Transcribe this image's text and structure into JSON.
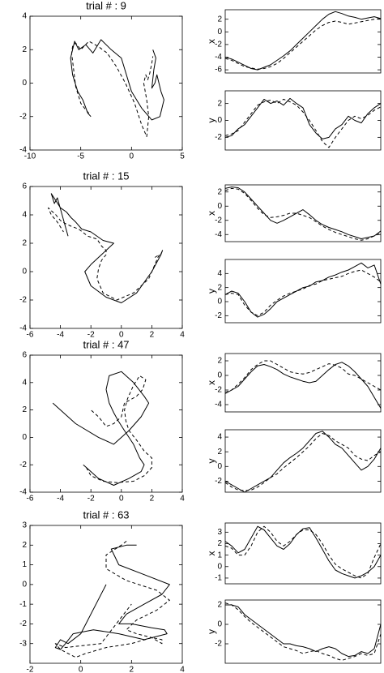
{
  "chart_data": [
    {
      "type": "line",
      "title": "trial # : 9",
      "xlim": [
        -10,
        5
      ],
      "ylim": [
        -4,
        4
      ],
      "xticks": [
        -10,
        -5,
        0,
        5
      ],
      "yticks": [
        -4,
        -2,
        0,
        2,
        4
      ],
      "series": [
        {
          "color": "#000000",
          "dashed": false,
          "x": [
            -4,
            -4.3,
            -4.8,
            -5.3,
            -5.8,
            -6,
            -5.6,
            -5.2,
            -4.5,
            -3.8,
            -3,
            -2,
            -1,
            0,
            1,
            2,
            2.8,
            3.2,
            2.9,
            2.5,
            2.3,
            2.0,
            2.2,
            2.4,
            2.1
          ],
          "values": [
            -2,
            -1.8,
            -1,
            -0.5,
            0.5,
            1.5,
            2.5,
            2,
            2.3,
            1.8,
            2.6,
            2,
            1.5,
            -0.5,
            -1.5,
            -2.2,
            -2,
            -1,
            -0.5,
            0.5,
            0,
            -0.3,
            0.8,
            1.5,
            2
          ]
        },
        {
          "color": "#000000",
          "dashed": true,
          "x": [
            -4.2,
            -4.5,
            -5,
            -5.5,
            -5.7,
            -5.9,
            -5.8,
            -5.5,
            -5,
            -4.2,
            -3.3,
            -2.4,
            -1.5,
            -0.6,
            0.3,
            1,
            1.5,
            1.7,
            1.5,
            1.2,
            1.4,
            1.6,
            1.8,
            2,
            2.1
          ],
          "values": [
            -1.8,
            -1.6,
            -1.2,
            -0.2,
            0.8,
            1.8,
            2.2,
            2.4,
            2,
            2.5,
            2.2,
            1.8,
            1,
            0,
            -1.2,
            -2.5,
            -3.2,
            -2,
            -1,
            0,
            0.5,
            0.2,
            0.6,
            1.2,
            1.6
          ]
        }
      ]
    },
    {
      "type": "line",
      "ylabel": "x",
      "ylim": [
        -6.5,
        3.5
      ],
      "yticks": [
        -6,
        -4,
        -2,
        0,
        2
      ],
      "series": [
        {
          "color": "#000000",
          "dashed": false,
          "values": [
            -4,
            -4.3,
            -4.8,
            -5.3,
            -5.8,
            -6,
            -5.6,
            -5.2,
            -4.5,
            -3.8,
            -3,
            -2,
            -1,
            0,
            1,
            2,
            2.8,
            3.2,
            2.9,
            2.5,
            2.3,
            2.0,
            2.2,
            2.4,
            2.1
          ]
        },
        {
          "color": "#000000",
          "dashed": true,
          "values": [
            -4.2,
            -4.5,
            -5,
            -5.5,
            -5.7,
            -5.9,
            -5.8,
            -5.5,
            -5,
            -4.2,
            -3.3,
            -2.4,
            -1.5,
            -0.6,
            0.3,
            1,
            1.5,
            1.7,
            1.5,
            1.2,
            1.4,
            1.6,
            1.8,
            2,
            2.1
          ]
        }
      ]
    },
    {
      "type": "line",
      "ylabel": "y",
      "ylim": [
        -3.5,
        3.5
      ],
      "yticks": [
        -2,
        0,
        2
      ],
      "series": [
        {
          "color": "#000000",
          "dashed": false,
          "values": [
            -2,
            -1.8,
            -1,
            -0.5,
            0.5,
            1.5,
            2.5,
            2,
            2.3,
            1.8,
            2.6,
            2,
            1.5,
            -0.5,
            -1.5,
            -2.2,
            -2,
            -1,
            -0.5,
            0.5,
            0,
            -0.3,
            0.8,
            1.5,
            2
          ]
        },
        {
          "color": "#000000",
          "dashed": true,
          "values": [
            -1.8,
            -1.6,
            -1.2,
            -0.2,
            0.8,
            1.8,
            2.2,
            2.4,
            2,
            2.5,
            2.2,
            1.8,
            1,
            0,
            -1.2,
            -2.5,
            -3.2,
            -2,
            -1,
            0,
            0.5,
            0.2,
            0.6,
            1.2,
            1.6
          ]
        }
      ]
    },
    {
      "type": "line",
      "title": "trial # : 15",
      "xlim": [
        -6,
        4
      ],
      "ylim": [
        -4,
        6
      ],
      "xticks": [
        -6,
        -4,
        -2,
        0,
        2,
        4
      ],
      "yticks": [
        -4,
        -2,
        0,
        2,
        4,
        6
      ],
      "series": [
        {
          "color": "#000000",
          "dashed": false,
          "x": [
            2.5,
            2.7,
            2.6,
            2,
            1,
            0,
            -1,
            -2,
            -2.4,
            -2,
            -1.5,
            -1,
            -0.5,
            -1.2,
            -2,
            -2.6,
            -3,
            -3.3,
            -3.6,
            -4,
            -4.3,
            -4.6,
            -4.4,
            -4.2,
            -3.5
          ],
          "values": [
            1,
            1.5,
            1.2,
            0,
            -1.5,
            -2.2,
            -1.8,
            -1,
            0,
            0.5,
            1,
            1.5,
            2,
            2.2,
            2.8,
            3,
            3.5,
            3.8,
            4.2,
            4.5,
            5,
            5.5,
            4.8,
            5.2,
            2.5
          ]
        },
        {
          "color": "#000000",
          "dashed": true,
          "x": [
            2.2,
            2.5,
            2.4,
            1.8,
            0.8,
            -0.3,
            -1.2,
            -1.6,
            -1.5,
            -1.3,
            -1,
            -1,
            -1.3,
            -1.6,
            -2.2,
            -2.8,
            -3.3,
            -3.7,
            -4,
            -4.3,
            -4.6,
            -4.8,
            -4.6,
            -4.2,
            -3.8
          ],
          "values": [
            1,
            1.2,
            1,
            -0.5,
            -1.5,
            -2,
            -1.5,
            -0.5,
            0.2,
            0.8,
            1.2,
            1.5,
            1.8,
            2.3,
            2.5,
            3,
            3.2,
            3.4,
            3.6,
            4,
            4.3,
            4.5,
            4,
            3.5,
            2.8
          ]
        }
      ]
    },
    {
      "type": "line",
      "ylabel": "x",
      "ylim": [
        -5,
        3
      ],
      "yticks": [
        -4,
        -2,
        0,
        2
      ],
      "series": [
        {
          "color": "#000000",
          "dashed": false,
          "values": [
            2.5,
            2.7,
            2.6,
            2,
            1,
            0,
            -1,
            -2,
            -2.4,
            -2,
            -1.5,
            -1,
            -0.5,
            -1.2,
            -2,
            -2.6,
            -3,
            -3.3,
            -3.6,
            -4,
            -4.3,
            -4.6,
            -4.4,
            -4.2,
            -3.5
          ]
        },
        {
          "color": "#000000",
          "dashed": true,
          "values": [
            2.2,
            2.5,
            2.4,
            1.8,
            0.8,
            -0.3,
            -1.2,
            -1.6,
            -1.5,
            -1.3,
            -1,
            -1,
            -1.3,
            -1.6,
            -2.2,
            -2.8,
            -3.3,
            -3.7,
            -4,
            -4.3,
            -4.6,
            -4.8,
            -4.6,
            -4.2,
            -3.8
          ]
        }
      ]
    },
    {
      "type": "line",
      "ylabel": "y",
      "ylim": [
        -3,
        6
      ],
      "yticks": [
        -2,
        0,
        2,
        4
      ],
      "series": [
        {
          "color": "#000000",
          "dashed": false,
          "values": [
            1,
            1.5,
            1.2,
            0,
            -1.5,
            -2.2,
            -1.8,
            -1,
            0,
            0.5,
            1,
            1.5,
            2,
            2.2,
            2.8,
            3,
            3.5,
            3.8,
            4.2,
            4.5,
            5,
            5.5,
            4.8,
            5.2,
            2.5
          ]
        },
        {
          "color": "#000000",
          "dashed": true,
          "values": [
            1,
            1.2,
            1,
            -0.5,
            -1.5,
            -2,
            -1.5,
            -0.5,
            0.2,
            0.8,
            1.2,
            1.5,
            1.8,
            2.3,
            2.5,
            3,
            3.2,
            3.4,
            3.6,
            4,
            4.3,
            4.5,
            4,
            3.5,
            2.8
          ]
        }
      ]
    },
    {
      "type": "line",
      "title": "trial # : 47",
      "xlim": [
        -6,
        4
      ],
      "ylim": [
        -4,
        6
      ],
      "xticks": [
        -6,
        -4,
        -2,
        0,
        2,
        4
      ],
      "yticks": [
        -4,
        -2,
        0,
        2,
        4,
        6
      ],
      "series": [
        {
          "color": "#000000",
          "dashed": false,
          "x": [
            -2.5,
            -2,
            -1.5,
            -0.5,
            0.5,
            1.3,
            1.5,
            1.2,
            0.8,
            0.2,
            -0.2,
            -0.5,
            -0.8,
            -1,
            -0.8,
            0,
            0.8,
            1.5,
            1.8,
            1.3,
            0.5,
            -0.5,
            -1.5,
            -3,
            -4.5
          ],
          "values": [
            -2,
            -2.5,
            -3,
            -3.5,
            -3,
            -2.5,
            -2,
            -1.5,
            -0.5,
            0.5,
            1.2,
            1.8,
            2.5,
            3.5,
            4.5,
            4.8,
            4,
            3,
            2.5,
            1.5,
            0.5,
            -0.5,
            0,
            1,
            2.5
          ]
        },
        {
          "color": "#000000",
          "dashed": true,
          "x": [
            -2.3,
            -2,
            -1.2,
            -0.3,
            0.8,
            1.5,
            2,
            2,
            1.5,
            1,
            0.5,
            0.3,
            0.2,
            0.4,
            0.8,
            1.2,
            1.6,
            1.4,
            1,
            0.2,
            0,
            -0.5,
            -1,
            -1.5,
            -2
          ],
          "values": [
            -2.2,
            -2.8,
            -3.2,
            -3.3,
            -3.2,
            -2.8,
            -2.2,
            -1.5,
            -1,
            -0.2,
            0.5,
            1.2,
            2,
            2.8,
            3.8,
            4.5,
            4.2,
            3.5,
            3,
            2.5,
            1.5,
            1,
            0.8,
            1.5,
            2
          ]
        }
      ]
    },
    {
      "type": "line",
      "ylabel": "x",
      "ylim": [
        -5,
        3
      ],
      "yticks": [
        -4,
        -2,
        0,
        2
      ],
      "series": [
        {
          "color": "#000000",
          "dashed": false,
          "values": [
            -2.5,
            -2,
            -1.5,
            -0.5,
            0.5,
            1.3,
            1.5,
            1.2,
            0.8,
            0.2,
            -0.2,
            -0.5,
            -0.8,
            -1,
            -0.8,
            0,
            0.8,
            1.5,
            1.8,
            1.3,
            0.5,
            -0.5,
            -1.5,
            -3,
            -4.5
          ]
        },
        {
          "color": "#000000",
          "dashed": true,
          "values": [
            -2.3,
            -2,
            -1.2,
            -0.3,
            0.8,
            1.5,
            2,
            2,
            1.5,
            1,
            0.5,
            0.3,
            0.2,
            0.4,
            0.8,
            1.2,
            1.6,
            1.4,
            1,
            0.2,
            0,
            -0.5,
            -1,
            -1.5,
            -2
          ]
        }
      ]
    },
    {
      "type": "line",
      "ylabel": "y",
      "ylim": [
        -3.5,
        5
      ],
      "yticks": [
        -2,
        0,
        2,
        4
      ],
      "series": [
        {
          "color": "#000000",
          "dashed": false,
          "values": [
            -2,
            -2.5,
            -3,
            -3.5,
            -3,
            -2.5,
            -2,
            -1.5,
            -0.5,
            0.5,
            1.2,
            1.8,
            2.5,
            3.5,
            4.5,
            4.8,
            4,
            3,
            2.5,
            1.5,
            0.5,
            -0.5,
            0,
            1,
            2.5
          ]
        },
        {
          "color": "#000000",
          "dashed": true,
          "values": [
            -2.2,
            -2.8,
            -3.2,
            -3.3,
            -3.2,
            -2.8,
            -2.2,
            -1.5,
            -1,
            -0.2,
            0.5,
            1.2,
            2,
            2.8,
            3.8,
            4.5,
            4.2,
            3.5,
            3,
            2.5,
            1.5,
            1,
            0.8,
            1.5,
            2
          ]
        }
      ]
    },
    {
      "type": "line",
      "title": "trial # : 63",
      "xlim": [
        -2,
        4
      ],
      "ylim": [
        -4,
        3
      ],
      "xticks": [
        -2,
        0,
        2,
        4
      ],
      "yticks": [
        -3,
        -2,
        -1,
        0,
        1,
        2,
        3
      ],
      "series": [
        {
          "color": "#000000",
          "dashed": false,
          "x": [
            2.2,
            1.8,
            1.2,
            1.5,
            2.5,
            3.5,
            3.2,
            2.5,
            1.8,
            1.5,
            2,
            2.8,
            3.3,
            3.4,
            2.5,
            1.5,
            0.5,
            -0.3,
            -0.6,
            -0.8,
            -1,
            -0.8,
            -0.5,
            0,
            1
          ],
          "values": [
            2,
            2,
            1.8,
            1,
            0.5,
            0,
            -0.5,
            -1,
            -1.5,
            -2,
            -2,
            -2.2,
            -2.3,
            -2.5,
            -2.8,
            -2.5,
            -2.3,
            -2.5,
            -3,
            -3.3,
            -3.2,
            -2.8,
            -3,
            -2.5,
            0
          ]
        },
        {
          "color": "#000000",
          "dashed": true,
          "x": [
            1.8,
            1.6,
            1,
            1,
            1.8,
            3,
            3.5,
            3,
            2.2,
            1.8,
            2.2,
            2.8,
            3.2,
            3.2,
            2.8,
            2,
            1,
            0.2,
            -0.2,
            -0.5,
            -0.8,
            -1,
            -0.6,
            0.8,
            2
          ],
          "values": [
            2.2,
            2,
            1.5,
            0.8,
            0.2,
            -0.3,
            -0.8,
            -1.3,
            -1.8,
            -2.3,
            -2.5,
            -2.7,
            -3,
            -2.8,
            -2.7,
            -3,
            -3.2,
            -3.5,
            -3.7,
            -3.5,
            -3.3,
            -3,
            -3.2,
            -3,
            -1
          ]
        }
      ]
    },
    {
      "type": "line",
      "ylabel": "x",
      "ylim": [
        -1.5,
        3.8
      ],
      "yticks": [
        -1,
        0,
        1,
        2,
        3
      ],
      "series": [
        {
          "color": "#000000",
          "dashed": false,
          "values": [
            2.2,
            1.8,
            1.2,
            1.5,
            2.5,
            3.5,
            3.2,
            2.5,
            1.8,
            1.5,
            2,
            2.8,
            3.3,
            3.4,
            2.5,
            1.5,
            0.5,
            -0.3,
            -0.6,
            -0.8,
            -1,
            -0.8,
            -0.5,
            0,
            1
          ]
        },
        {
          "color": "#000000",
          "dashed": true,
          "values": [
            1.8,
            1.6,
            1,
            1,
            1.8,
            3,
            3.5,
            3,
            2.2,
            1.8,
            2.2,
            2.8,
            3.2,
            3.2,
            2.8,
            2,
            1,
            0.2,
            -0.2,
            -0.5,
            -0.8,
            -1,
            -0.6,
            0.8,
            2
          ]
        }
      ]
    },
    {
      "type": "line",
      "ylabel": "y",
      "ylim": [
        -4,
        2.5
      ],
      "yticks": [
        -2,
        0,
        2
      ],
      "series": [
        {
          "color": "#000000",
          "dashed": false,
          "values": [
            2,
            2,
            1.8,
            1,
            0.5,
            0,
            -0.5,
            -1,
            -1.5,
            -2,
            -2,
            -2.2,
            -2.3,
            -2.5,
            -2.8,
            -2.5,
            -2.3,
            -2.5,
            -3,
            -3.3,
            -3.2,
            -2.8,
            -3,
            -2.5,
            0
          ]
        },
        {
          "color": "#000000",
          "dashed": true,
          "values": [
            2.2,
            2,
            1.5,
            0.8,
            0.2,
            -0.3,
            -0.8,
            -1.3,
            -1.8,
            -2.3,
            -2.5,
            -2.7,
            -3,
            -2.8,
            -2.7,
            -3,
            -3.2,
            -3.5,
            -3.7,
            -3.5,
            -3.3,
            -3,
            -3.2,
            -3,
            -1
          ]
        }
      ]
    }
  ]
}
